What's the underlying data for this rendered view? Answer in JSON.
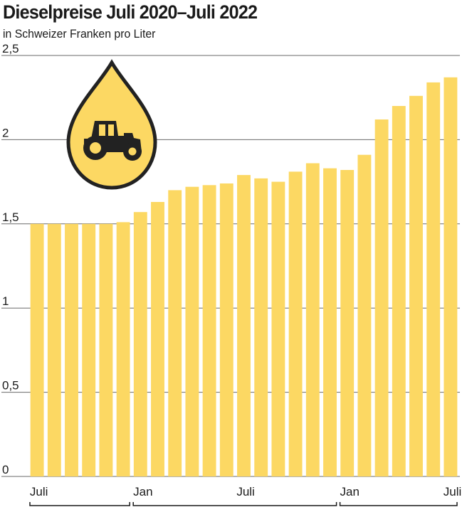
{
  "header": {
    "title": "Dieselpreise Juli 2020–Juli 2022",
    "subtitle": "in Schweizer Franken pro Liter"
  },
  "icon": "oil-drop-tractor-icon",
  "colors": {
    "bar": "#fcd863",
    "icon_fill": "#fcd863",
    "icon_stroke": "#222222",
    "grid": "#6a6a6a"
  },
  "chart_data": {
    "type": "bar",
    "title": "Dieselpreise Juli 2020–Juli 2022",
    "subtitle": "in Schweizer Franken pro Liter",
    "xlabel": "",
    "ylabel": "",
    "ylim": [
      0,
      2.5
    ],
    "yticks": [
      {
        "value": 0,
        "label": "0"
      },
      {
        "value": 0.5,
        "label": "0,5"
      },
      {
        "value": 1,
        "label": "1"
      },
      {
        "value": 1.5,
        "label": "1,5"
      },
      {
        "value": 2,
        "label": "2"
      },
      {
        "value": 2.5,
        "label": "2,5"
      }
    ],
    "grid": true,
    "xtick_labels": [
      {
        "index": 0,
        "label": "Juli"
      },
      {
        "index": 6,
        "label": "Jan"
      },
      {
        "index": 12,
        "label": "Juli"
      },
      {
        "index": 18,
        "label": "Jan"
      },
      {
        "index": 24,
        "label": "Juli"
      }
    ],
    "year_brackets": [
      [
        0,
        5
      ],
      [
        6,
        17
      ],
      [
        18,
        24
      ]
    ],
    "values": [
      1.5,
      1.5,
      1.5,
      1.5,
      1.5,
      1.51,
      1.57,
      1.63,
      1.7,
      1.72,
      1.73,
      1.74,
      1.79,
      1.77,
      1.75,
      1.81,
      1.86,
      1.83,
      1.82,
      1.91,
      2.12,
      2.2,
      2.26,
      2.34,
      2.37
    ]
  }
}
